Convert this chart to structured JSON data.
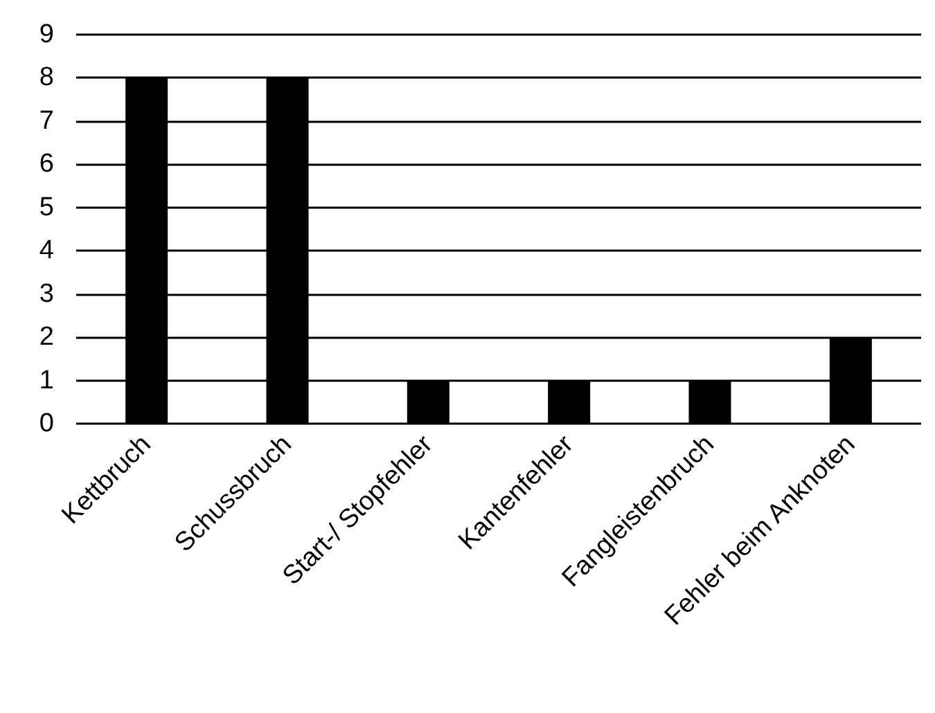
{
  "chart_data": {
    "type": "bar",
    "categories": [
      "Kettbruch",
      "Schussbruch",
      "Start-/ Stopfehler",
      "Kantenfehler",
      "Fangleistenbruch",
      "Fehler beim Anknoten"
    ],
    "values": [
      8,
      8,
      1,
      1,
      1,
      2
    ],
    "color": "#000000",
    "ylim": [
      0,
      9
    ],
    "yticks": [
      0,
      1,
      2,
      3,
      4,
      5,
      6,
      7,
      8,
      9
    ],
    "grid": "y"
  }
}
